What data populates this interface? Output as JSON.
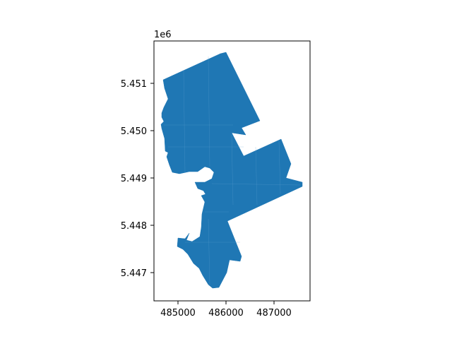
{
  "chart_data": {
    "type": "map",
    "geometry": "single polygon (parcel/district outline)",
    "fill_color": "#1f77b4",
    "xlim": [
      484200,
      487450
    ],
    "ylim": [
      5446400,
      5451900
    ],
    "x_ticks": [
      485000,
      486000,
      487000
    ],
    "x_tick_labels": [
      "485000",
      "486000",
      "487000"
    ],
    "y_ticks": [
      5447000,
      5448000,
      5449000,
      5450000,
      5451000
    ],
    "y_tick_labels": [
      "5.447",
      "5.448",
      "5.449",
      "5.450",
      "5.451"
    ],
    "y_offset_label": "1e6",
    "grid": false,
    "legend": "none",
    "title": "",
    "xlabel": "",
    "ylabel": ""
  }
}
